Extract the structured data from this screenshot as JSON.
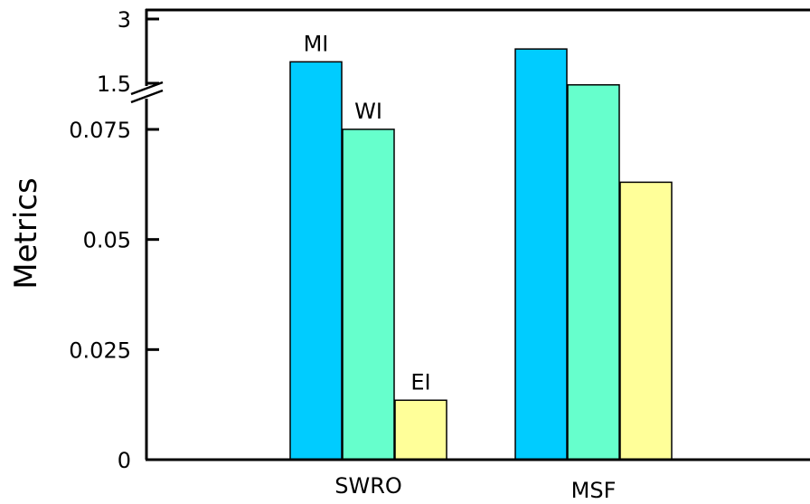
{
  "chart_data": {
    "type": "bar",
    "title": "",
    "xlabel": "",
    "ylabel": "Metrics",
    "categories": [
      "SWRO",
      "MSF"
    ],
    "series": [
      {
        "name": "MI",
        "values": [
          2.0,
          2.3
        ],
        "color": "#00ccff"
      },
      {
        "name": "WI",
        "values": [
          0.077,
          1.45
        ],
        "color": "#66ffcc"
      },
      {
        "name": "EI",
        "values": [
          0.0135,
          0.063
        ],
        "color": "#ffff99"
      }
    ],
    "lower_yticks": [
      "0",
      "0.025",
      "0.05",
      "0.075"
    ],
    "upper_yticks": [
      "1.5",
      "3"
    ],
    "lower_ylim": [
      0,
      0.075
    ],
    "upper_ylim": [
      1.5,
      3
    ],
    "axis_break": true,
    "grid": false,
    "legend": "none",
    "bar_labels": [
      "MI",
      "WI",
      "EI"
    ]
  }
}
